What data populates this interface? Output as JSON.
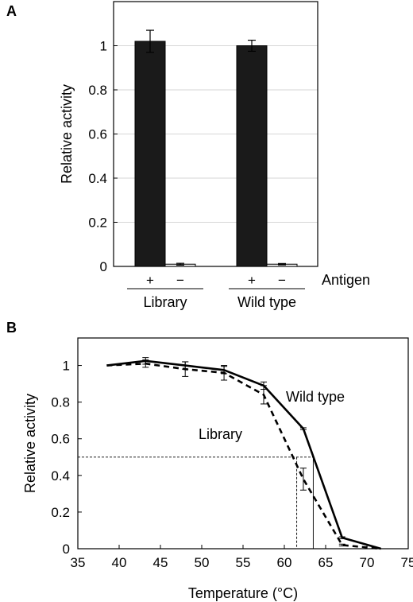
{
  "chart_data": [
    {
      "panel": "A",
      "type": "bar",
      "ylabel": "Relative activity",
      "ylim": [
        0,
        1.2
      ],
      "yticks": [
        0,
        0.2,
        0.4,
        0.6,
        0.8,
        1
      ],
      "grid": true,
      "groups": [
        {
          "name": "Library",
          "bars": [
            {
              "label": "+",
              "value": 1.02,
              "error": 0.05,
              "color": "#1a1a1a"
            },
            {
              "label": "−",
              "value": 0.01,
              "error": 0.004,
              "color": "#ffffff"
            }
          ]
        },
        {
          "name": "Wild type",
          "bars": [
            {
              "label": "+",
              "value": 1.0,
              "error": 0.025,
              "color": "#1a1a1a"
            },
            {
              "label": "−",
              "value": 0.01,
              "error": 0.003,
              "color": "#ffffff"
            }
          ]
        }
      ],
      "group_axis_label": "Antigen"
    },
    {
      "panel": "B",
      "type": "line",
      "xlabel": "Temperature (°C)",
      "ylabel": "Relative activity",
      "xlim": [
        35,
        75
      ],
      "ylim": [
        0,
        1.15
      ],
      "xticks": [
        35,
        40,
        45,
        50,
        55,
        60,
        65,
        70,
        75
      ],
      "yticks": [
        0,
        0.2,
        0.4,
        0.6,
        0.8,
        1
      ],
      "grid": false,
      "series": [
        {
          "name": "Wild type",
          "style": "solid",
          "x": [
            38.5,
            43.2,
            48,
            52.7,
            57.5,
            62.3,
            67,
            71.7
          ],
          "y": [
            1.0,
            1.025,
            1.0,
            0.975,
            0.89,
            0.655,
            0.06,
            0.0
          ],
          "error": [
            0,
            0.018,
            0.02,
            0.02,
            0.02,
            0.005,
            0.005,
            0
          ]
        },
        {
          "name": "Library",
          "style": "dashed",
          "x": [
            38.5,
            43.2,
            48,
            52.7,
            57.5,
            62.3,
            67,
            71.7
          ],
          "y": [
            1.0,
            1.01,
            0.98,
            0.96,
            0.84,
            0.38,
            0.02,
            0.0
          ],
          "error": [
            0,
            0.02,
            0.04,
            0.04,
            0.05,
            0.06,
            0.005,
            0
          ]
        }
      ],
      "annotations": {
        "half_activity": 0.5,
        "tm_library": 61.5,
        "tm_wild_type": 63.5
      }
    }
  ]
}
